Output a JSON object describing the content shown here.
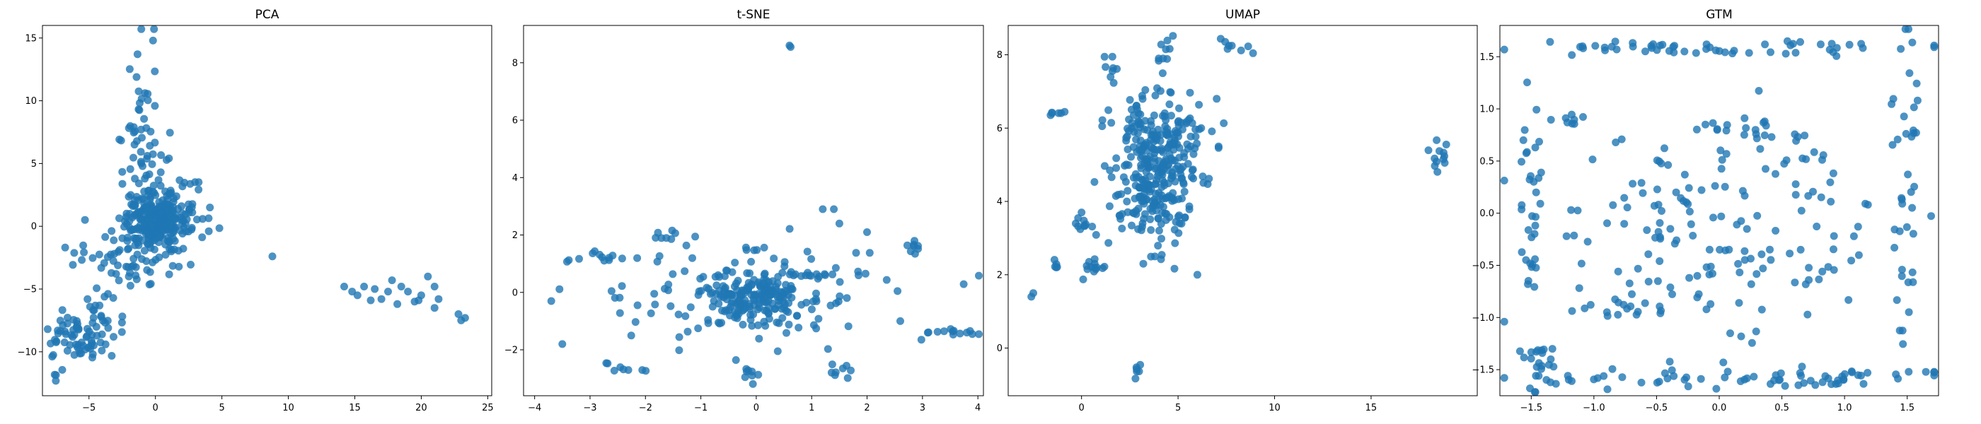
{
  "chart_data": [
    {
      "type": "scatter",
      "title": "PCA",
      "xlabel": "",
      "ylabel": "",
      "xlim": [
        -8.5,
        25.3
      ],
      "ylim": [
        -13.5,
        16
      ],
      "xticks": [
        -5,
        0,
        5,
        10,
        15,
        20,
        25
      ],
      "yticks": [
        -10,
        -5,
        0,
        5,
        10,
        15
      ],
      "color": "#1f77b4",
      "grid": false,
      "clusters": [
        {
          "cx": 0,
          "cy": 0.5,
          "sx": 1.2,
          "sy": 1.0,
          "n": 240
        },
        {
          "cx": -1.5,
          "cy": -2.2,
          "sx": 2.0,
          "sy": 1.4,
          "n": 70
        },
        {
          "cx": 1.5,
          "cy": 1.5,
          "sx": 1.6,
          "sy": 1.8,
          "n": 50
        },
        {
          "cx": -1.2,
          "cy": 4.5,
          "sx": 0.9,
          "sy": 2.2,
          "n": 35
        },
        {
          "cx": -1.0,
          "cy": 10.5,
          "sx": 0.6,
          "sy": 2.5,
          "n": 25
        },
        {
          "cx": -4.5,
          "cy": -6.5,
          "sx": 1.2,
          "sy": 1.4,
          "n": 35
        },
        {
          "cx": -6.5,
          "cy": -9.0,
          "sx": 0.8,
          "sy": 0.8,
          "n": 35
        },
        {
          "cx": -4.8,
          "cy": -9.5,
          "sx": 0.6,
          "sy": 0.5,
          "n": 15
        },
        {
          "cx": -7.5,
          "cy": -11.5,
          "sx": 0.3,
          "sy": 0.5,
          "n": 4
        }
      ],
      "points": [
        [
          8.8,
          -2.4
        ],
        [
          14.2,
          -4.8
        ],
        [
          15.2,
          -5.5
        ],
        [
          15.7,
          -4.8
        ],
        [
          16.5,
          -5.0
        ],
        [
          17.0,
          -5.8
        ],
        [
          17.5,
          -5.2
        ],
        [
          17.8,
          -4.3
        ],
        [
          18.2,
          -6.2
        ],
        [
          18.5,
          -4.8
        ],
        [
          19.0,
          -5.2
        ],
        [
          19.5,
          -6.0
        ],
        [
          20.0,
          -5.5
        ],
        [
          20.5,
          -4.0
        ],
        [
          21.0,
          -4.8
        ],
        [
          21.3,
          -5.8
        ],
        [
          21.0,
          -6.5
        ],
        [
          22.8,
          -7.0
        ],
        [
          23.0,
          -7.5
        ],
        [
          23.3,
          -7.3
        ],
        [
          14.8,
          -5.2
        ],
        [
          16.2,
          -5.9
        ],
        [
          19.8,
          -5.9
        ]
      ]
    },
    {
      "type": "scatter",
      "title": "t-SNE",
      "xlabel": "",
      "ylabel": "",
      "xlim": [
        -4.2,
        4.1
      ],
      "ylim": [
        -3.6,
        9.3
      ],
      "xticks": [
        -4,
        -3,
        -2,
        -1,
        0,
        1,
        2,
        3,
        4
      ],
      "yticks": [
        -2,
        0,
        2,
        4,
        6,
        8
      ],
      "color": "#1f77b4",
      "grid": false,
      "clusters": [
        {
          "cx": 0,
          "cy": -0.2,
          "sx": 0.45,
          "sy": 0.4,
          "n": 160
        },
        {
          "cx": 0,
          "cy": 0,
          "sx": 1.3,
          "sy": 1.0,
          "n": 120
        },
        {
          "cx": -1.6,
          "cy": 2.0,
          "sx": 0.25,
          "sy": 0.2,
          "n": 8
        },
        {
          "cx": 1.5,
          "cy": -2.7,
          "sx": 0.1,
          "sy": 0.2,
          "n": 8
        },
        {
          "cx": 2.8,
          "cy": 1.6,
          "sx": 0.12,
          "sy": 0.15,
          "n": 8
        },
        {
          "cx": -2.8,
          "cy": 1.2,
          "sx": 0.3,
          "sy": 0.1,
          "n": 12
        },
        {
          "cx": 3.6,
          "cy": -1.35,
          "sx": 0.3,
          "sy": 0.05,
          "n": 10
        },
        {
          "cx": -2.4,
          "cy": -2.6,
          "sx": 0.25,
          "sy": 0.15,
          "n": 8
        },
        {
          "cx": -0.1,
          "cy": -2.9,
          "sx": 0.1,
          "sy": 0.2,
          "n": 8
        },
        {
          "cx": 1.1,
          "cy": 0.6,
          "sx": 0.4,
          "sy": 0.05,
          "n": 12
        }
      ],
      "points": [
        [
          0.6,
          8.6
        ],
        [
          0.62,
          8.55
        ],
        [
          -3.7,
          -0.3
        ],
        [
          -3.5,
          -1.8
        ],
        [
          1.2,
          2.9
        ],
        [
          1.4,
          2.9
        ],
        [
          2.0,
          2.1
        ],
        [
          1.5,
          2.4
        ],
        [
          2.6,
          -1.0
        ],
        [
          3.9,
          -1.45
        ],
        [
          3.8,
          -1.4
        ]
      ]
    },
    {
      "type": "scatter",
      "title": "UMAP",
      "xlabel": "",
      "ylabel": "",
      "xlim": [
        -3.8,
        20.5
      ],
      "ylim": [
        -1.3,
        8.8
      ],
      "xticks": [
        0,
        5,
        10,
        15
      ],
      "yticks": [
        0,
        2,
        4,
        6,
        8
      ],
      "color": "#1f77b4",
      "grid": false,
      "clusters": [
        {
          "cx": 3.8,
          "cy": 5.2,
          "sx": 1.1,
          "sy": 0.9,
          "n": 260
        },
        {
          "cx": 3.5,
          "cy": 4.0,
          "sx": 0.9,
          "sy": 0.9,
          "n": 60
        },
        {
          "cx": 0.6,
          "cy": 2.2,
          "sx": 0.25,
          "sy": 0.3,
          "n": 14
        },
        {
          "cx": 0.2,
          "cy": 3.3,
          "sx": 0.3,
          "sy": 0.15,
          "n": 8
        },
        {
          "cx": -1.5,
          "cy": 2.3,
          "sx": 0.2,
          "sy": 0.15,
          "n": 5
        },
        {
          "cx": -1.2,
          "cy": 6.45,
          "sx": 0.25,
          "sy": 0.05,
          "n": 6
        },
        {
          "cx": 1.6,
          "cy": 7.6,
          "sx": 0.25,
          "sy": 0.3,
          "n": 8
        },
        {
          "cx": 4.3,
          "cy": 8.0,
          "sx": 0.2,
          "sy": 0.3,
          "n": 10
        },
        {
          "cx": 7.8,
          "cy": 8.3,
          "sx": 0.5,
          "sy": 0.15,
          "n": 8
        },
        {
          "cx": 18.6,
          "cy": 5.2,
          "sx": 0.3,
          "sy": 0.25,
          "n": 12
        },
        {
          "cx": 2.9,
          "cy": -0.6,
          "sx": 0.1,
          "sy": 0.15,
          "n": 6
        },
        {
          "cx": 5.6,
          "cy": 5.0,
          "sx": 0.6,
          "sy": 0.8,
          "n": 20
        }
      ],
      "points": [
        [
          -2.6,
          1.4
        ],
        [
          -2.5,
          1.5
        ],
        [
          0.0,
          3.7
        ],
        [
          -0.3,
          3.4
        ],
        [
          6.0,
          2.0
        ],
        [
          6.2,
          6.0
        ],
        [
          7.1,
          5.5
        ],
        [
          7.0,
          6.8
        ],
        [
          3.2,
          2.3
        ],
        [
          3.8,
          2.5
        ]
      ]
    },
    {
      "type": "scatter",
      "title": "GTM",
      "xlabel": "",
      "ylabel": "",
      "xlim": [
        -1.75,
        1.75
      ],
      "ylim": [
        -1.75,
        1.8
      ],
      "xticks": [
        -1.5,
        -1.0,
        -0.5,
        0.0,
        0.5,
        1.0,
        1.5
      ],
      "yticks": [
        -1.5,
        -1.0,
        -0.5,
        0.0,
        0.5,
        1.0,
        1.5
      ],
      "color": "#1f77b4",
      "grid": false,
      "clusters": [
        {
          "cx": 0.1,
          "cy": -0.1,
          "sx": 0.65,
          "sy": 0.5,
          "n": 150
        },
        {
          "cx": 0,
          "cy": 1.58,
          "sx": 0.95,
          "sy": 0.04,
          "n": 55
        },
        {
          "cx": 0,
          "cy": -1.58,
          "sx": 0.95,
          "sy": 0.05,
          "n": 50
        },
        {
          "cx": -1.5,
          "cy": 0,
          "sx": 0.04,
          "sy": 0.9,
          "n": 40
        },
        {
          "cx": 1.5,
          "cy": 0,
          "sx": 0.05,
          "sy": 0.9,
          "n": 40
        },
        {
          "cx": -1.45,
          "cy": -1.4,
          "sx": 0.08,
          "sy": 0.12,
          "n": 18
        },
        {
          "cx": 0.3,
          "cy": 0.75,
          "sx": 0.25,
          "sy": 0.15,
          "n": 25
        },
        {
          "cx": -0.7,
          "cy": -0.9,
          "sx": 0.3,
          "sy": 0.05,
          "n": 15
        },
        {
          "cx": 0.9,
          "cy": -1.6,
          "sx": 0.15,
          "sy": 0.05,
          "n": 15
        },
        {
          "cx": -1.2,
          "cy": 0.9,
          "sx": 0.1,
          "sy": 0.05,
          "n": 8
        }
      ],
      "points": []
    }
  ]
}
